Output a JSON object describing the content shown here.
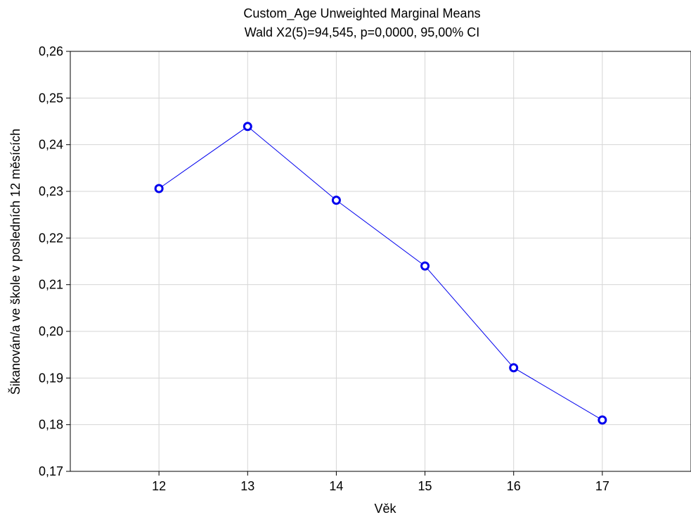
{
  "chart_data": {
    "type": "line",
    "title": "Custom_Age Unweighted Marginal Means",
    "subtitle": "Wald  X2(5)=94,545, p=0,0000, 95,00% CI",
    "xlabel": "Věk",
    "ylabel": "Šikanován/a ve škole v posledních 12 měsících",
    "categories": [
      "12",
      "13",
      "14",
      "15",
      "16",
      "17"
    ],
    "x": [
      12,
      13,
      14,
      15,
      16,
      17
    ],
    "xlim": [
      11,
      18
    ],
    "ylim": [
      0.17,
      0.26
    ],
    "yticks": [
      0.17,
      0.18,
      0.19,
      0.2,
      0.21,
      0.22,
      0.23,
      0.24,
      0.25,
      0.26
    ],
    "ytick_labels": [
      "0,17",
      "0,18",
      "0,19",
      "0,20",
      "0,21",
      "0,22",
      "0,23",
      "0,24",
      "0,25",
      "0,26"
    ],
    "grid": true,
    "series": [
      {
        "values": [
          0.2306,
          0.2439,
          0.2281,
          0.214,
          0.1922,
          0.181
        ],
        "color": "#0000ee",
        "marker": "circle"
      }
    ]
  }
}
